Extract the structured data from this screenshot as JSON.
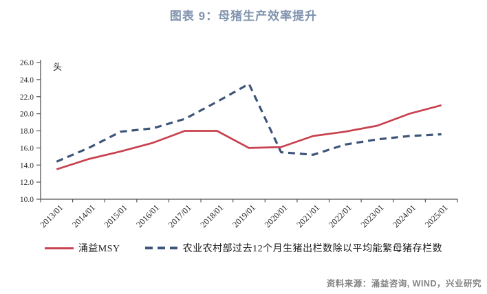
{
  "title": "图表 9：母猪生产效率提升",
  "footer": {
    "text": "资料来源：涌益咨询, WIND，兴业研究"
  },
  "colors": {
    "title": "#8093AE",
    "red_series": "#C8414F",
    "navy_series": "#3D5578",
    "axis": "#555555",
    "tick_text": "#262626",
    "footer_text": "#828282"
  },
  "chart_data": {
    "type": "line",
    "title": "图表 9：母猪生产效率提升",
    "unit_label": "头",
    "categories": [
      "2013/01",
      "2014/01",
      "2015/01",
      "2016/01",
      "2017/01",
      "2018/01",
      "2019/01",
      "2020/01",
      "2021/01",
      "2022/01",
      "2023/01",
      "2024/01",
      "2025/01"
    ],
    "series": [
      {
        "name": "涌益MSY",
        "style": "solid",
        "color": "#C8414F",
        "values": [
          13.5,
          14.7,
          15.6,
          16.6,
          18.0,
          18.0,
          16.0,
          16.1,
          17.4,
          17.9,
          18.6,
          20.0,
          21.0
        ]
      },
      {
        "name": "农业农村部过去12个月生猪出栏数除以平均能繁母猪存栏数",
        "style": "dashed",
        "color": "#3D5578",
        "values": [
          14.4,
          16.0,
          17.9,
          18.3,
          19.4,
          21.4,
          23.5,
          15.5,
          15.2,
          16.4,
          17.0,
          17.4,
          17.6
        ]
      }
    ],
    "xlabel": "",
    "ylabel": "头",
    "ylim": [
      10.0,
      26.0
    ],
    "y_tick_labels": [
      "10.0",
      "12.0",
      "14.0",
      "16.0",
      "18.0",
      "20.0",
      "22.0",
      "24.0",
      "26.0"
    ],
    "grid": false,
    "legend_position": "bottom"
  }
}
